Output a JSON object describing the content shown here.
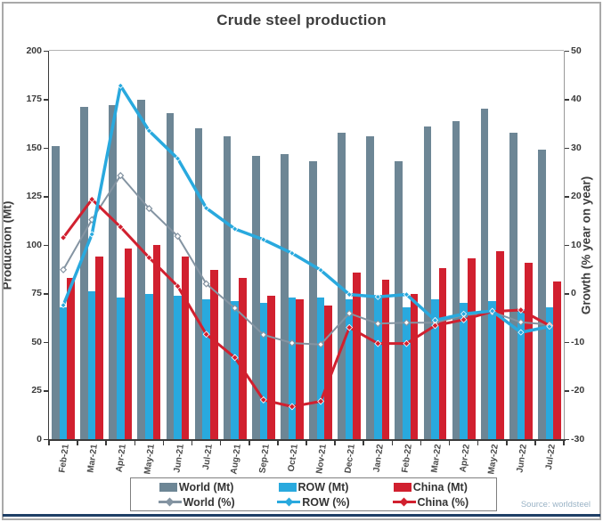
{
  "chart_data": {
    "type": "bar+line",
    "title": "Crude steel production",
    "source": "Source: worldsteel",
    "grid": false,
    "legend_position": "bottom",
    "categories": [
      "Feb-21",
      "Mar-21",
      "Apr-21",
      "May-21",
      "Jun-21",
      "Jul-21",
      "Aug-21",
      "Sep-21",
      "Oct-21",
      "Nov-21",
      "Dec-21",
      "Jan-22",
      "Feb-22",
      "Mar-22",
      "Apr-22",
      "May-22",
      "Jun-22",
      "Jul-22"
    ],
    "bar_series": [
      {
        "name": "World (Mt)",
        "axis": "left",
        "color_key": "world",
        "values": [
          151,
          171,
          172,
          175,
          168,
          160,
          156,
          146,
          147,
          143,
          158,
          156,
          143,
          161,
          164,
          170,
          158,
          149
        ]
      },
      {
        "name": "ROW (Mt)",
        "axis": "left",
        "color_key": "row",
        "values": [
          68,
          76,
          73,
          75,
          74,
          72,
          71,
          70,
          73,
          73,
          72,
          73,
          68,
          72,
          70,
          71,
          67,
          68
        ]
      },
      {
        "name": "China (Mt)",
        "axis": "left",
        "color_key": "china",
        "values": [
          83,
          94,
          98,
          100,
          94,
          87,
          83,
          74,
          72,
          69,
          86,
          82,
          75,
          88,
          93,
          97,
          91,
          81
        ]
      }
    ],
    "line_series": [
      {
        "name": "World (%)",
        "axis": "right",
        "color_key": "world_line",
        "stroke_width": 2,
        "marker": "open",
        "marker_size": 3.2,
        "values": [
          4.9,
          15.2,
          24.3,
          17.5,
          11.8,
          2.0,
          -3.0,
          -8.5,
          -10.2,
          -10.5,
          -4.1,
          -6.2,
          -6.0,
          -6.0,
          -4.5,
          -3.8,
          -5.9,
          -6.4
        ]
      },
      {
        "name": "China (%)",
        "axis": "right",
        "color_key": "china",
        "stroke_width": 3,
        "marker": "solid",
        "marker_size": 3.4,
        "values": [
          11.5,
          19.4,
          13.7,
          7.4,
          1.5,
          -8.4,
          -13.2,
          -21.9,
          -23.3,
          -22.2,
          -7.0,
          -10.3,
          -10.3,
          -6.6,
          -5.4,
          -3.7,
          -3.4,
          -6.6
        ]
      },
      {
        "name": "ROW (%)",
        "axis": "right",
        "color_key": "row",
        "stroke_width": 3.5,
        "marker": "solid",
        "marker_size": 3,
        "values": [
          -2.4,
          12.2,
          42.8,
          33.5,
          27.8,
          17.6,
          13.3,
          11.1,
          8.3,
          4.8,
          -0.2,
          -0.7,
          -0.2,
          -5.5,
          -4.2,
          -3.6,
          -8.0,
          -6.8
        ]
      }
    ],
    "left_axis": {
      "title": "Production (Mt)",
      "min": 0,
      "max": 200,
      "ticks": [
        0,
        25,
        50,
        75,
        100,
        125,
        150,
        175,
        200
      ]
    },
    "right_axis": {
      "title": "Growth (% year on year)",
      "min": -30,
      "max": 50,
      "ticks": [
        -30,
        -20,
        -10,
        0,
        10,
        20,
        30,
        40,
        50
      ]
    },
    "colors": {
      "world": "#6d8695",
      "row": "#29a9de",
      "china": "#d1202f",
      "world_line": "#8494a2",
      "axis_dark": "#3a3a3a",
      "axis_light": "#b3b3b3",
      "axis_text": "#3a3a3a",
      "xlabel": "#4a4a4a",
      "text_dark": "#3d3d3d",
      "source_text": "#9ab3c6",
      "navy_rule": "#1f3f66",
      "legend_border": "#7f7f7f",
      "frame_border": "#a9a9a9"
    }
  }
}
